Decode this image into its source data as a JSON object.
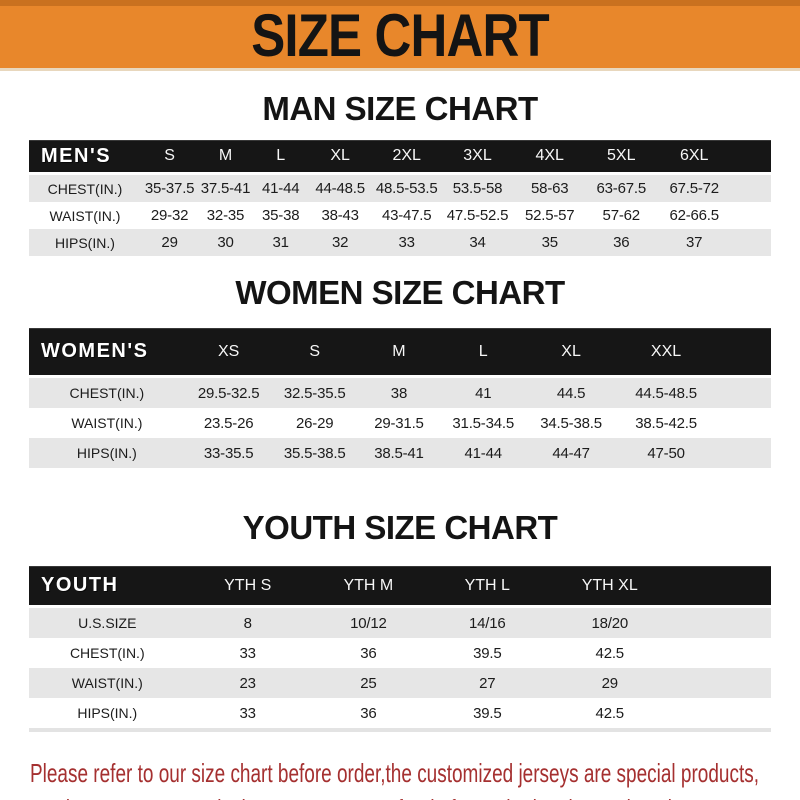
{
  "banner": {
    "title": "SIZE CHART",
    "bg_color": "#e8872b",
    "top_edge_color": "#c9711f",
    "text_color": "#141414"
  },
  "sections": [
    {
      "id": "man",
      "heading": "MAN SIZE CHART",
      "table": {
        "header_label": "MEN'S",
        "columns": [
          "S",
          "M",
          "L",
          "XL",
          "2XL",
          "3XL",
          "4XL",
          "5XL",
          "6XL"
        ],
        "rows": [
          {
            "label": "CHEST(IN.)",
            "values": [
              "35-37.5",
              "37.5-41",
              "41-44",
              "44-48.5",
              "48.5-53.5",
              "53.5-58",
              "58-63",
              "63-67.5",
              "67.5-72"
            ]
          },
          {
            "label": "WAIST(IN.)",
            "values": [
              "29-32",
              "32-35",
              "35-38",
              "38-43",
              "43-47.5",
              "47.5-52.5",
              "52.5-57",
              "57-62",
              "62-66.5"
            ]
          },
          {
            "label": "HIPS(IN.)",
            "values": [
              "29",
              "30",
              "31",
              "32",
              "33",
              "34",
              "35",
              "36",
              "37"
            ]
          }
        ]
      }
    },
    {
      "id": "women",
      "heading": "WOMEN SIZE CHART",
      "table": {
        "header_label": "WOMEN'S",
        "columns": [
          "XS",
          "S",
          "M",
          "L",
          "XL",
          "XXL"
        ],
        "rows": [
          {
            "label": "CHEST(IN.)",
            "values": [
              "29.5-32.5",
              "32.5-35.5",
              "38",
              "41",
              "44.5",
              "44.5-48.5"
            ]
          },
          {
            "label": "WAIST(IN.)",
            "values": [
              "23.5-26",
              "26-29",
              "29-31.5",
              "31.5-34.5",
              "34.5-38.5",
              "38.5-42.5"
            ]
          },
          {
            "label": "HIPS(IN.)",
            "values": [
              "33-35.5",
              "35.5-38.5",
              "38.5-41",
              "41-44",
              "44-47",
              "47-50"
            ]
          }
        ]
      }
    },
    {
      "id": "youth",
      "heading": "YOUTH SIZE CHART",
      "table": {
        "header_label": "YOUTH",
        "columns": [
          "YTH S",
          "YTH M",
          "YTH L",
          "YTH XL"
        ],
        "rows": [
          {
            "label": "U.S.SIZE",
            "values": [
              "8",
              "10/12",
              "14/16",
              "18/20"
            ]
          },
          {
            "label": "CHEST(IN.)",
            "values": [
              "33",
              "36",
              "39.5",
              "42.5"
            ]
          },
          {
            "label": "WAIST(IN.)",
            "values": [
              "23",
              "25",
              "27",
              "29"
            ]
          },
          {
            "label": "HIPS(IN.)",
            "values": [
              "33",
              "36",
              "39.5",
              "42.5"
            ]
          }
        ]
      }
    }
  ],
  "footer": {
    "line1": "Please refer to our size chart before order,the customized jerseys are special products,",
    "line2": "we don't accept cancel, change, teturn or refund after order has been placed!",
    "text_color": "#a53030"
  },
  "colors": {
    "header_bar": "#161616",
    "row_alt": "#e6e6e6",
    "row_base": "#ffffff",
    "page_bg": "#ffffff"
  }
}
